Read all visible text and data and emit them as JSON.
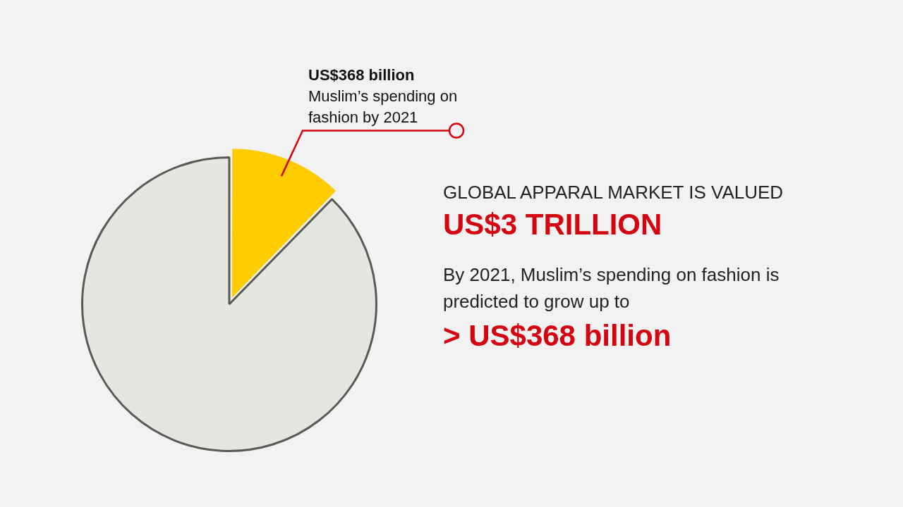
{
  "chart_data": {
    "type": "pie",
    "categories": [
      "Muslim’s spending on fashion by 2021",
      null
    ],
    "values": [
      12.3,
      87.7
    ],
    "colors": [
      "#fecc00",
      "#e3e6e1"
    ],
    "value_labels": [
      "US$368 billion",
      null
    ],
    "legend": false,
    "annotations": [
      "GLOBAL APPARAL MARKET IS VALUED",
      "US$3 TRILLION",
      "By 2021, Muslim’s spending on fashion is predicted to grow up to",
      "> US$368 billion"
    ]
  }
}
